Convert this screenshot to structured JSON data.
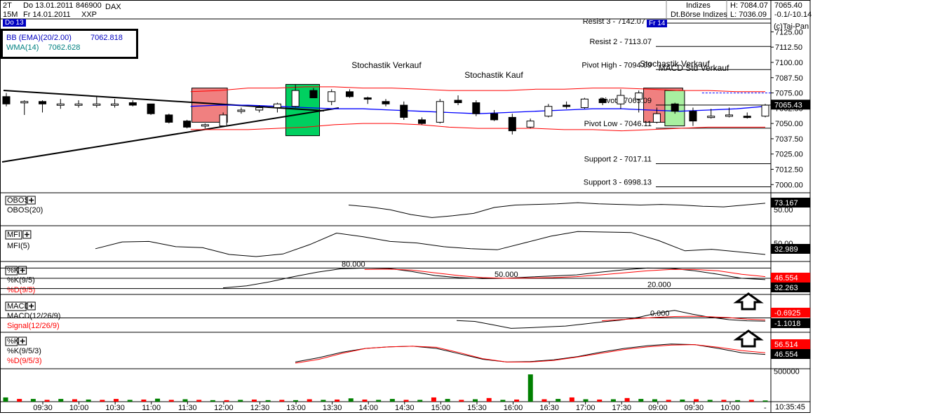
{
  "header": {
    "period": "2T",
    "interval": "15M",
    "date_from": "Do 13.01.2011",
    "date_to": "Fr 14.01.2011",
    "wkn": "846900",
    "symbol": "DAX",
    "exchange_code": "XXP",
    "market_line1": "Indizes",
    "market_line2": "Dt.Börse Indizes",
    "high": "H: 7084.07",
    "low": "L: 7036.09",
    "last_price": "7065.40",
    "change": "-0.1/-10.14",
    "copyright": "(c)Tai-Pan",
    "day_marker_1": "Do 13",
    "day_marker_2": "Fr 14",
    "clock": "10:35:45"
  },
  "colors": {
    "up_bar": "#ffffff",
    "down_bar": "#000000",
    "bollinger": "#ff0000",
    "wma": "#0000ff",
    "signal_red": "#ff0000",
    "sell_box": "#f08080",
    "buy_box": "#00d060",
    "green_volume": "#008000",
    "red_volume": "#ff0000",
    "day_marker_bg": "#0000c0"
  },
  "chart_data": [
    {
      "type": "candlestick",
      "panel": "price",
      "symbol": "DAX",
      "time_labels": [
        "09:30",
        "10:00",
        "10:30",
        "11:00",
        "11:30",
        "12:00",
        "12:30",
        "13:00",
        "13:30",
        "14:00",
        "14:30",
        "15:00",
        "15:30",
        "16:00",
        "16:30",
        "17:00",
        "17:30",
        "09:00",
        "09:30",
        "10:00"
      ],
      "y_ticks": [
        7000.0,
        7012.5,
        7025.0,
        7037.5,
        7050.0,
        7062.5,
        7075.0,
        7087.5,
        7100.0,
        7112.5,
        7125.0
      ],
      "ylim": [
        6995,
        7135
      ],
      "indicator_legend": [
        {
          "name": "BB (EMA)(20/2.00)",
          "value": "7062.818"
        },
        {
          "name": "WMA(14)",
          "value": "7062.628"
        }
      ],
      "current_price_tag": "7065.43",
      "levels": [
        {
          "label": "Resist 3 - 7142.07",
          "value": 7142.07
        },
        {
          "label": "Resist 2 - 7113.07",
          "value": 7113.07
        },
        {
          "label": "Pivot High - 7094.09",
          "value": 7094.09
        },
        {
          "label": "Pivot - 7065.09",
          "value": 7065.09
        },
        {
          "label": "Pivot Low - 7046.11",
          "value": 7046.11
        },
        {
          "label": "Support 2 - 7017.11",
          "value": 7017.11
        },
        {
          "label": "Support 3 - 6998.13",
          "value": 6998.13
        }
      ],
      "annotations": [
        "Stochastik Verkauf",
        "Stochastik Kauf",
        "Stochastik Verkauf",
        "MACD Std Verkauf"
      ],
      "candles": [
        {
          "o": 7072,
          "h": 7075,
          "l": 7064,
          "c": 7066
        },
        {
          "o": 7068,
          "h": 7069,
          "l": 7057,
          "c": 7068
        },
        {
          "o": 7068,
          "h": 7069,
          "l": 7059,
          "c": 7066
        },
        {
          "o": 7066,
          "h": 7070,
          "l": 7062,
          "c": 7066
        },
        {
          "o": 7066,
          "h": 7069,
          "l": 7063,
          "c": 7066
        },
        {
          "o": 7066,
          "h": 7072,
          "l": 7063,
          "c": 7066
        },
        {
          "o": 7066,
          "h": 7070,
          "l": 7063,
          "c": 7066
        },
        {
          "o": 7067,
          "h": 7069,
          "l": 7064,
          "c": 7065
        },
        {
          "o": 7066,
          "h": 7066,
          "l": 7057,
          "c": 7058
        },
        {
          "o": 7057,
          "h": 7058,
          "l": 7050,
          "c": 7051
        },
        {
          "o": 7052,
          "h": 7053,
          "l": 7046,
          "c": 7047
        },
        {
          "o": 7048,
          "h": 7050,
          "l": 7046,
          "c": 7049
        },
        {
          "o": 7048,
          "h": 7059,
          "l": 7048,
          "c": 7057
        },
        {
          "o": 7060,
          "h": 7063,
          "l": 7058,
          "c": 7061
        },
        {
          "o": 7061,
          "h": 7065,
          "l": 7059,
          "c": 7063
        },
        {
          "o": 7063,
          "h": 7067,
          "l": 7059,
          "c": 7066
        },
        {
          "o": 7064,
          "h": 7082,
          "l": 7063,
          "c": 7077
        },
        {
          "o": 7077,
          "h": 7079,
          "l": 7071,
          "c": 7071
        },
        {
          "o": 7068,
          "h": 7078,
          "l": 7065,
          "c": 7076
        },
        {
          "o": 7076,
          "h": 7078,
          "l": 7071,
          "c": 7072
        },
        {
          "o": 7071,
          "h": 7072,
          "l": 7066,
          "c": 7070
        },
        {
          "o": 7068,
          "h": 7070,
          "l": 7064,
          "c": 7066
        },
        {
          "o": 7065,
          "h": 7068,
          "l": 7053,
          "c": 7055
        },
        {
          "o": 7053,
          "h": 7055,
          "l": 7049,
          "c": 7050
        },
        {
          "o": 7051,
          "h": 7070,
          "l": 7050,
          "c": 7068
        },
        {
          "o": 7069,
          "h": 7073,
          "l": 7065,
          "c": 7067
        },
        {
          "o": 7067,
          "h": 7069,
          "l": 7056,
          "c": 7058
        },
        {
          "o": 7058,
          "h": 7061,
          "l": 7052,
          "c": 7053
        },
        {
          "o": 7055,
          "h": 7058,
          "l": 7041,
          "c": 7044
        },
        {
          "o": 7047,
          "h": 7054,
          "l": 7046,
          "c": 7052
        },
        {
          "o": 7056,
          "h": 7066,
          "l": 7055,
          "c": 7064
        },
        {
          "o": 7065,
          "h": 7068,
          "l": 7062,
          "c": 7064
        },
        {
          "o": 7063,
          "h": 7071,
          "l": 7062,
          "c": 7070
        },
        {
          "o": 7070,
          "h": 7071,
          "l": 7065,
          "c": 7067
        },
        {
          "o": 7066,
          "h": 7078,
          "l": 7062,
          "c": 7073
        },
        {
          "o": 7070,
          "h": 7077,
          "l": 7059,
          "c": 7075
        },
        {
          "o": 7051,
          "h": 7063,
          "l": 7050,
          "c": 7058
        },
        {
          "o": 7066,
          "h": 7067,
          "l": 7058,
          "c": 7060
        },
        {
          "o": 7060,
          "h": 7063,
          "l": 7048,
          "c": 7052
        },
        {
          "o": 7056,
          "h": 7062,
          "l": 7054,
          "c": 7056
        },
        {
          "o": 7057,
          "h": 7063,
          "l": 7055,
          "c": 7057
        },
        {
          "o": 7056,
          "h": 7059,
          "l": 7054,
          "c": 7055
        },
        {
          "o": 7056,
          "h": 7066,
          "l": 7055,
          "c": 7065
        }
      ],
      "bollinger_upper": [
        7076,
        7077,
        7079,
        7079,
        7080,
        7080,
        7079,
        7079,
        7078,
        7077,
        7077,
        7077,
        7078,
        7078,
        7079,
        7079,
        7078,
        7077,
        7077,
        7076,
        7076
      ],
      "bollinger_lower": [
        7045,
        7045,
        7045,
        7046,
        7047,
        7049,
        7050,
        7050,
        7049,
        7047,
        7046,
        7046,
        7046,
        7045,
        7045,
        7044,
        7045,
        7046,
        7047,
        7047,
        7047
      ],
      "wma": [
        7064,
        7065,
        7065,
        7064,
        7063,
        7062,
        7062,
        7061,
        7060,
        7059,
        7058,
        7059,
        7060,
        7061,
        7062,
        7062,
        7061,
        7060,
        7061,
        7062,
        7064
      ]
    },
    {
      "type": "line",
      "panel": "OBOS",
      "series": [
        {
          "name": "OBOS(20)",
          "values": [
            70,
            67,
            62,
            54,
            49,
            52,
            56,
            66,
            70,
            71,
            72,
            74,
            72,
            71,
            70,
            71,
            70,
            68,
            67,
            70,
            73
          ]
        }
      ],
      "current_value": "73.167",
      "ticks": [
        "50.00"
      ]
    },
    {
      "type": "line",
      "panel": "MFI",
      "series": [
        {
          "name": "MFI(5)",
          "values": [
            44,
            57,
            58,
            48,
            46,
            33,
            29,
            34,
            52,
            74,
            67,
            58,
            55,
            48,
            44,
            42,
            55,
            68,
            77,
            76,
            75,
            60,
            40,
            43,
            38,
            33
          ]
        }
      ],
      "current_value": "32.989",
      "ticks": [
        "50.00"
      ]
    },
    {
      "type": "line",
      "panel": "Stochastic %K(9/5)",
      "series": [
        {
          "name": "%K(9/5)",
          "values": [
            22,
            28,
            40,
            55,
            68,
            78,
            80,
            79,
            70,
            58,
            52,
            49,
            50,
            54,
            57,
            60,
            68,
            75,
            80,
            79,
            72,
            62,
            50,
            46
          ]
        },
        {
          "name": "%D(9/5)",
          "values": [
            null,
            null,
            null,
            null,
            null,
            null,
            76,
            77,
            74,
            66,
            58,
            52,
            50,
            51,
            52,
            55,
            60,
            66,
            72,
            76,
            76,
            72,
            62,
            55
          ]
        }
      ],
      "values_shown": [
        "46.554",
        "32.263"
      ],
      "levels": [
        "80.000",
        "50.000",
        "20.000"
      ]
    },
    {
      "type": "line",
      "panel": "MACD",
      "series": [
        {
          "name": "MACD(12/26/9)",
          "values": [
            -0.9,
            -1.2,
            -2.4,
            -3.6,
            -3.4,
            -3.1,
            -2.8,
            -2.1,
            -1.4,
            -0.8,
            0.2,
            1.6,
            2.6,
            1.3,
            0.2,
            -0.6,
            -1.0,
            -1.1
          ]
        },
        {
          "name": "Signal(12/26/9)",
          "values": [
            null,
            null,
            null,
            null,
            null,
            null,
            null,
            null,
            -1.0,
            -0.6,
            -0.2,
            0.2,
            0.5,
            0.6,
            0.4,
            0.1,
            -0.4,
            -0.7
          ]
        }
      ],
      "values_shown": [
        "-0.6925",
        "-1.1018"
      ],
      "levels": [
        "0.000"
      ]
    },
    {
      "type": "line",
      "panel": "Stochastic %K(9/5/3)",
      "series": [
        {
          "name": "%K(9/5/3)",
          "values": [
            30,
            38,
            48,
            55,
            58,
            59,
            55,
            45,
            35,
            30,
            31,
            34,
            40,
            48,
            55,
            60,
            63,
            62,
            55,
            47,
            44
          ]
        },
        {
          "name": "%D(9/5/3)",
          "values": [
            28,
            35,
            46,
            55,
            58,
            59,
            57,
            47,
            36,
            30,
            30,
            33,
            39,
            46,
            53,
            58,
            61,
            62,
            57,
            51,
            47
          ]
        }
      ],
      "values_shown": [
        "56.514",
        "46.554"
      ]
    },
    {
      "type": "bar",
      "panel": "Volume",
      "ticks": [
        "500000"
      ],
      "values": [
        70000,
        45000,
        45000,
        30000,
        45000,
        40000,
        35000,
        30000,
        45000,
        30000,
        35000,
        50000,
        30000,
        40000,
        30000,
        25000,
        25000,
        30000,
        35000,
        25000,
        30000,
        25000,
        40000,
        30000,
        35000,
        55000,
        35000,
        30000,
        45000,
        30000,
        30000,
        70000,
        45000,
        30000,
        40000,
        60000,
        30000,
        35000,
        450000,
        40000,
        45000,
        70000,
        40000,
        35000,
        40000,
        60000,
        45000,
        40000,
        30000,
        35000,
        40000,
        30000,
        30000,
        25000,
        30000,
        20000
      ],
      "colors": [
        "g",
        "r",
        "g",
        "r",
        "g",
        "r",
        "g",
        "r",
        "r",
        "g",
        "r",
        "g",
        "r",
        "g",
        "r",
        "g",
        "r",
        "g",
        "r",
        "g",
        "r",
        "g",
        "r",
        "g",
        "r",
        "g",
        "r",
        "g",
        "g",
        "r",
        "g",
        "r",
        "g",
        "r",
        "g",
        "r",
        "g",
        "r",
        "g",
        "r",
        "g",
        "r",
        "g",
        "r",
        "g",
        "r",
        "g",
        "g",
        "r",
        "g",
        "r",
        "g",
        "r",
        "g",
        "r",
        "g"
      ]
    }
  ],
  "panels": {
    "obos_label": "OBOS",
    "obos_sub": "OBOS(20)",
    "mfi_label": "MFI",
    "mfi_sub": "MFI(5)",
    "stoch1_label": "%K",
    "stoch1_k": "%K(9/5)",
    "stoch1_d": "%D(9/5)",
    "macd_label": "MACD",
    "macd_line": "MACD(12/26/9)",
    "macd_signal": "Signal(12/26/9)",
    "stoch2_label": "%K",
    "stoch2_k": "%K(9/5/3)",
    "stoch2_d": "%D(9/5/3)"
  }
}
